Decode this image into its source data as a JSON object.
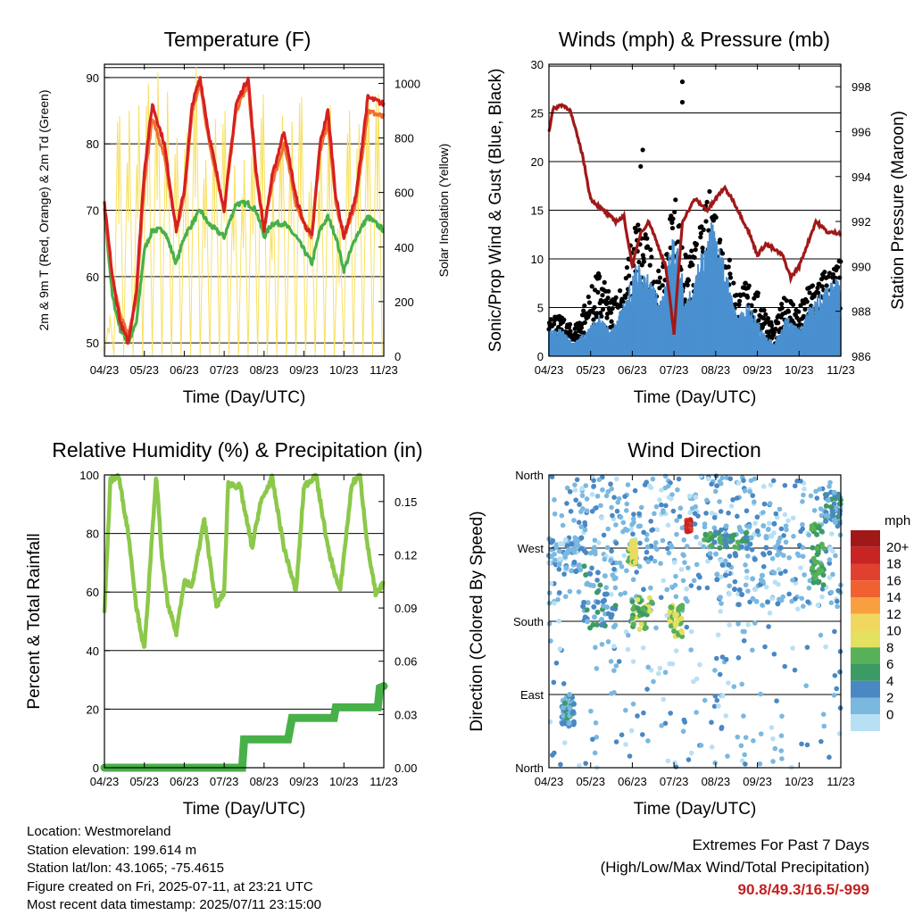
{
  "chart_data": [
    {
      "type": "line",
      "title": "Temperature (F)",
      "xlabel": "Time (Day/UTC)",
      "ylabel": "2m & 9m T (Red, Orange) & 2m Td (Green)",
      "ylabel_right": "Solar Insolation (Yellow)",
      "xticks": [
        "04/23",
        "05/23",
        "06/23",
        "07/23",
        "08/23",
        "09/23",
        "10/23",
        "11/23"
      ],
      "yticks": [
        50,
        60,
        70,
        80,
        90
      ],
      "yticks_right": [
        0,
        200,
        400,
        600,
        800,
        1000
      ],
      "ylim": [
        48,
        92
      ],
      "ylim_right": [
        0,
        1070
      ],
      "x": [
        0,
        0.2,
        0.4,
        0.6,
        0.8,
        1,
        1.2,
        1.5,
        1.8,
        2,
        2.2,
        2.4,
        2.6,
        3,
        3.3,
        3.6,
        3.8,
        4,
        4.2,
        4.5,
        4.8,
        5,
        5.2,
        5.4,
        5.6,
        5.8,
        6,
        6.3,
        6.6,
        7
      ],
      "series": [
        {
          "name": "2m T",
          "color": "#d62020",
          "values": [
            71,
            60,
            53,
            50,
            58,
            76,
            86,
            80,
            67,
            73,
            86,
            90,
            82,
            70,
            86,
            90,
            76,
            67,
            75,
            82,
            72,
            68,
            66,
            80,
            85,
            72,
            66,
            72,
            87,
            86
          ]
        },
        {
          "name": "9m T",
          "color": "#f07030",
          "values": [
            70,
            60,
            54,
            51,
            57,
            74,
            84,
            78,
            67,
            72,
            85,
            89,
            81,
            70,
            85,
            89,
            75,
            67,
            74,
            80,
            71,
            68,
            66,
            79,
            83,
            71,
            66,
            71,
            85,
            84
          ]
        },
        {
          "name": "2m Td",
          "color": "#48b048",
          "values": [
            70,
            57,
            52,
            50,
            53,
            64,
            67,
            67,
            62,
            66,
            68,
            70,
            68,
            66,
            71,
            71,
            70,
            66,
            68,
            68,
            66,
            64,
            62,
            67,
            69,
            66,
            61,
            66,
            69,
            67
          ]
        }
      ],
      "insolation": {
        "color": "#f8e060",
        "day_peaks": [
          150,
          880,
          900,
          920,
          1000,
          1040,
          970,
          800,
          820,
          1060,
          720,
          870,
          900,
          700,
          720,
          810,
          960,
          640,
          880,
          860,
          950,
          640,
          820,
          920,
          480,
          900,
          850,
          960,
          960
        ]
      }
    },
    {
      "type": "line",
      "title": "Winds (mph) & Pressure (mb)",
      "xlabel": "Time (Day/UTC)",
      "ylabel": "Sonic/Prop Wind & Gust (Blue, Black)",
      "ylabel_right": "Station Pressure (Maroon)",
      "xticks": [
        "04/23",
        "05/23",
        "06/23",
        "07/23",
        "08/23",
        "09/23",
        "10/23",
        "11/23"
      ],
      "yticks": [
        0,
        5,
        10,
        15,
        20,
        25,
        30
      ],
      "yticks_right": [
        986,
        988,
        990,
        992,
        994,
        996,
        998
      ],
      "ylim": [
        0,
        30
      ],
      "ylim_right": [
        986,
        999
      ],
      "wind_envelope_x": [
        0,
        0.3,
        0.6,
        0.9,
        1.2,
        1.5,
        1.8,
        2.1,
        2.4,
        2.7,
        3.0,
        3.3,
        3.6,
        3.9,
        4.2,
        4.5,
        4.8,
        5.1,
        5.4,
        5.7,
        6.0,
        6.3,
        6.6,
        7.0
      ],
      "wind_envelope": [
        2,
        2,
        1,
        2,
        3,
        2,
        4,
        7,
        6,
        4,
        10,
        4,
        7,
        10,
        7,
        3,
        4,
        2,
        1,
        3,
        2,
        4,
        5,
        6
      ],
      "gust_envelope": [
        5,
        4,
        3,
        6,
        9,
        6,
        8,
        15,
        12,
        8,
        18,
        10,
        13,
        18,
        13,
        7,
        8,
        6,
        3,
        7,
        5,
        8,
        9,
        10
      ],
      "gust_max": [
        28.2,
        26.1,
        21.2,
        19.5
      ],
      "pressure_x": [
        0,
        0.1,
        0.3,
        0.5,
        0.8,
        1.0,
        1.3,
        1.6,
        1.8,
        2.0,
        2.2,
        2.4,
        2.6,
        2.8,
        3.0,
        3.2,
        3.5,
        3.8,
        4.0,
        4.2,
        4.4,
        4.8,
        5.0,
        5.2,
        5.6,
        5.8,
        6.0,
        6.2,
        6.4,
        6.7,
        7.0
      ],
      "pressure": [
        996,
        997,
        997.2,
        997,
        995,
        993,
        992.5,
        992,
        992.2,
        990,
        991.5,
        992,
        991,
        990,
        987,
        992,
        993,
        992.5,
        993,
        993.5,
        993,
        991.5,
        990.5,
        991,
        990.5,
        989.5,
        990,
        991,
        992,
        991.5,
        991.5
      ],
      "colors": {
        "wind": "#4a90d0",
        "gust": "#000000",
        "pressure": "#a01818"
      }
    },
    {
      "type": "line",
      "title": "Relative Humidity (%) & Precipitation (in)",
      "xlabel": "Time (Day/UTC)",
      "ylabel": "Percent & Total Rainfall",
      "xticks": [
        "04/23",
        "05/23",
        "06/23",
        "07/23",
        "08/23",
        "09/23",
        "10/23",
        "11/23"
      ],
      "yticks": [
        0,
        20,
        40,
        60,
        80,
        100
      ],
      "yticks_right": [
        "0.00",
        "0.03",
        "0.06",
        "0.09",
        "0.12",
        "0.15"
      ],
      "ylim": [
        0,
        100
      ],
      "ylim_right": [
        0,
        0.165
      ],
      "x": [
        0,
        0.15,
        0.35,
        0.6,
        0.8,
        1.0,
        1.1,
        1.3,
        1.45,
        1.6,
        1.8,
        2.0,
        2.2,
        2.5,
        2.8,
        3.0,
        3.1,
        3.4,
        3.7,
        3.9,
        4.2,
        4.5,
        4.8,
        5.0,
        5.3,
        5.6,
        5.9,
        6.2,
        6.4,
        6.6,
        6.8,
        7.0
      ],
      "rh": [
        53,
        98,
        100,
        80,
        55,
        40,
        60,
        100,
        70,
        55,
        46,
        64,
        62,
        85,
        55,
        60,
        97,
        96,
        75,
        90,
        99,
        75,
        60,
        96,
        100,
        75,
        60,
        97,
        100,
        75,
        59,
        63
      ],
      "precip_x": [
        0,
        3.45,
        3.5,
        4.6,
        4.7,
        5.75,
        5.8,
        6.85,
        6.9,
        7.0
      ],
      "precip": [
        0,
        0,
        0.016,
        0.016,
        0.028,
        0.028,
        0.034,
        0.034,
        0.045,
        0.046
      ],
      "colors": {
        "rh": "#8cc84a",
        "precip": "#48b048"
      }
    },
    {
      "type": "scatter",
      "title": "Wind Direction",
      "xlabel": "Time (Day/UTC)",
      "ylabel": "Direction (Colored By Speed)",
      "xticks": [
        "04/23",
        "05/23",
        "06/23",
        "07/23",
        "08/23",
        "09/23",
        "10/23",
        "11/23"
      ],
      "yticks": [
        "North",
        "East",
        "South",
        "West",
        "North"
      ],
      "ylim": [
        0,
        360
      ],
      "clusters": [
        {
          "x": [
            0,
            0.8
          ],
          "dir": [
            240,
            285
          ],
          "speed": 2
        },
        {
          "x": [
            0.3,
            0.6
          ],
          "dir": [
            50,
            90
          ],
          "speed": 4
        },
        {
          "x": [
            0.8,
            1.6
          ],
          "dir": [
            170,
            250
          ],
          "speed": 4
        },
        {
          "x": [
            1.9,
            2.1
          ],
          "dir": [
            250,
            280
          ],
          "speed": 10
        },
        {
          "x": [
            2.0,
            2.5
          ],
          "dir": [
            170,
            210
          ],
          "speed": 8
        },
        {
          "x": [
            2.9,
            3.2
          ],
          "dir": [
            160,
            200
          ],
          "speed": 9
        },
        {
          "x": [
            3.3,
            3.4
          ],
          "dir": [
            290,
            305
          ],
          "speed": 20
        },
        {
          "x": [
            3.6,
            4.8
          ],
          "dir": [
            270,
            290
          ],
          "speed": 6
        },
        {
          "x": [
            4.0,
            5.6
          ],
          "dir": [
            200,
            300
          ],
          "speed": 3
        },
        {
          "x": [
            6.3,
            6.6
          ],
          "dir": [
            220,
            300
          ],
          "speed": 7
        },
        {
          "x": [
            6.6,
            7.0
          ],
          "dir": [
            300,
            340
          ],
          "speed": 4
        }
      ],
      "colorbar": {
        "title": "mph",
        "labels": [
          "20+",
          "18",
          "16",
          "14",
          "12",
          "10",
          "8",
          "6",
          "4",
          "2",
          "0"
        ],
        "colors": [
          "#a01818",
          "#c82424",
          "#e04030",
          "#f06030",
          "#f8a040",
          "#f0d860",
          "#e4e060",
          "#58b058",
          "#3c9a64",
          "#4a88c4",
          "#7ab8e0",
          "#b8e0f4"
        ]
      }
    }
  ],
  "station_info": {
    "location": "Location: Westmoreland",
    "elevation": "Station elevation: 199.614 m",
    "latlon": "Station lat/lon: 43.1065; -75.4615",
    "created": "Figure created on Fri, 2025-07-11, at 23:21 UTC",
    "timestamp": "Most recent data timestamp: 2025/07/11 23:15:00"
  },
  "extremes": {
    "title": "Extremes For Past 7 Days",
    "subtitle": "(High/Low/Max Wind/Total Precipitation)",
    "values": "90.8/49.3/16.5/-999"
  }
}
